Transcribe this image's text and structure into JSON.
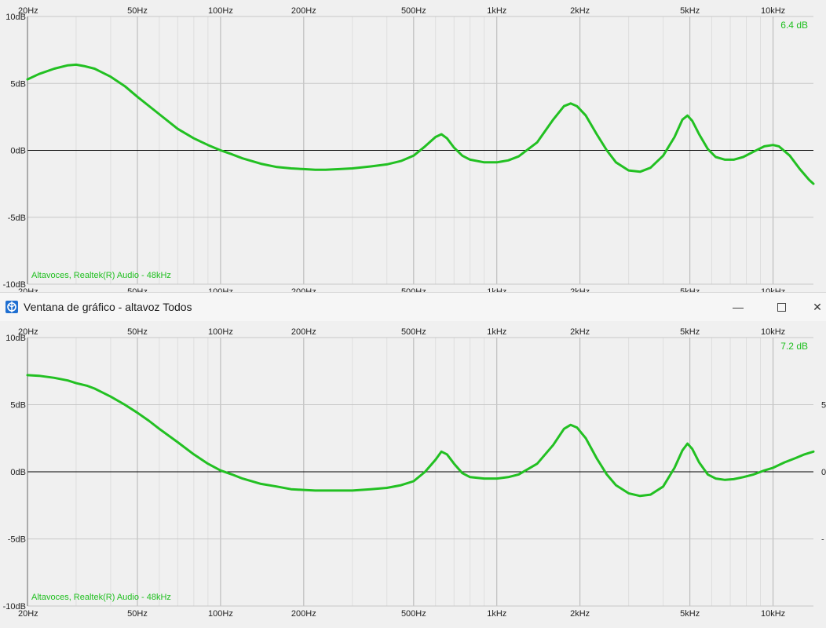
{
  "window": {
    "title": "Ventana de gráfico - altavoz Todos",
    "minimize_glyph": "—",
    "close_glyph": "✕"
  },
  "graphs": [
    {
      "peak_label": "6.4 dB",
      "device_label": "Altavoces, Realtek(R) Audio - 48kHz",
      "curve": [
        [
          20,
          5.3
        ],
        [
          22,
          5.7
        ],
        [
          25,
          6.1
        ],
        [
          28,
          6.35
        ],
        [
          30,
          6.4
        ],
        [
          32,
          6.3
        ],
        [
          35,
          6.1
        ],
        [
          40,
          5.5
        ],
        [
          45,
          4.8
        ],
        [
          50,
          4.0
        ],
        [
          60,
          2.7
        ],
        [
          70,
          1.6
        ],
        [
          80,
          0.9
        ],
        [
          90,
          0.4
        ],
        [
          100,
          0.0
        ],
        [
          110,
          -0.3
        ],
        [
          120,
          -0.6
        ],
        [
          140,
          -1.0
        ],
        [
          160,
          -1.25
        ],
        [
          180,
          -1.35
        ],
        [
          200,
          -1.4
        ],
        [
          220,
          -1.45
        ],
        [
          240,
          -1.45
        ],
        [
          270,
          -1.4
        ],
        [
          300,
          -1.35
        ],
        [
          350,
          -1.2
        ],
        [
          400,
          -1.05
        ],
        [
          450,
          -0.8
        ],
        [
          500,
          -0.4
        ],
        [
          550,
          0.3
        ],
        [
          600,
          1.0
        ],
        [
          630,
          1.2
        ],
        [
          660,
          0.9
        ],
        [
          700,
          0.2
        ],
        [
          750,
          -0.4
        ],
        [
          800,
          -0.7
        ],
        [
          900,
          -0.9
        ],
        [
          1000,
          -0.9
        ],
        [
          1100,
          -0.75
        ],
        [
          1200,
          -0.45
        ],
        [
          1400,
          0.6
        ],
        [
          1600,
          2.3
        ],
        [
          1750,
          3.3
        ],
        [
          1850,
          3.5
        ],
        [
          1950,
          3.3
        ],
        [
          2100,
          2.6
        ],
        [
          2300,
          1.2
        ],
        [
          2500,
          0.0
        ],
        [
          2700,
          -0.9
        ],
        [
          3000,
          -1.5
        ],
        [
          3300,
          -1.6
        ],
        [
          3600,
          -1.3
        ],
        [
          4000,
          -0.4
        ],
        [
          4400,
          1.0
        ],
        [
          4700,
          2.3
        ],
        [
          4900,
          2.6
        ],
        [
          5100,
          2.2
        ],
        [
          5400,
          1.2
        ],
        [
          5800,
          0.1
        ],
        [
          6200,
          -0.5
        ],
        [
          6700,
          -0.7
        ],
        [
          7200,
          -0.7
        ],
        [
          7800,
          -0.5
        ],
        [
          8500,
          -0.1
        ],
        [
          9300,
          0.3
        ],
        [
          10000,
          0.4
        ],
        [
          10500,
          0.3
        ],
        [
          11500,
          -0.4
        ],
        [
          12500,
          -1.4
        ],
        [
          13500,
          -2.2
        ],
        [
          14000,
          -2.5
        ]
      ]
    },
    {
      "peak_label": "7.2 dB",
      "device_label": "Altavoces, Realtek(R) Audio - 48kHz",
      "curve": [
        [
          20,
          7.2
        ],
        [
          22,
          7.15
        ],
        [
          25,
          7.0
        ],
        [
          28,
          6.8
        ],
        [
          30,
          6.6
        ],
        [
          33,
          6.4
        ],
        [
          35,
          6.2
        ],
        [
          40,
          5.6
        ],
        [
          45,
          5.0
        ],
        [
          50,
          4.4
        ],
        [
          55,
          3.8
        ],
        [
          60,
          3.2
        ],
        [
          70,
          2.2
        ],
        [
          80,
          1.3
        ],
        [
          90,
          0.6
        ],
        [
          100,
          0.1
        ],
        [
          110,
          -0.2
        ],
        [
          120,
          -0.5
        ],
        [
          140,
          -0.9
        ],
        [
          160,
          -1.1
        ],
        [
          180,
          -1.3
        ],
        [
          200,
          -1.35
        ],
        [
          220,
          -1.4
        ],
        [
          250,
          -1.4
        ],
        [
          300,
          -1.4
        ],
        [
          350,
          -1.3
        ],
        [
          400,
          -1.2
        ],
        [
          450,
          -1.0
        ],
        [
          500,
          -0.7
        ],
        [
          550,
          0.0
        ],
        [
          600,
          0.9
        ],
        [
          630,
          1.5
        ],
        [
          660,
          1.3
        ],
        [
          700,
          0.6
        ],
        [
          750,
          -0.1
        ],
        [
          800,
          -0.4
        ],
        [
          900,
          -0.5
        ],
        [
          1000,
          -0.5
        ],
        [
          1100,
          -0.4
        ],
        [
          1200,
          -0.2
        ],
        [
          1400,
          0.6
        ],
        [
          1600,
          2.0
        ],
        [
          1750,
          3.2
        ],
        [
          1850,
          3.5
        ],
        [
          1950,
          3.3
        ],
        [
          2100,
          2.5
        ],
        [
          2300,
          1.0
        ],
        [
          2500,
          -0.2
        ],
        [
          2700,
          -1.0
        ],
        [
          3000,
          -1.6
        ],
        [
          3300,
          -1.8
        ],
        [
          3600,
          -1.7
        ],
        [
          4000,
          -1.1
        ],
        [
          4400,
          0.3
        ],
        [
          4700,
          1.6
        ],
        [
          4900,
          2.1
        ],
        [
          5100,
          1.7
        ],
        [
          5400,
          0.7
        ],
        [
          5800,
          -0.2
        ],
        [
          6200,
          -0.5
        ],
        [
          6700,
          -0.6
        ],
        [
          7200,
          -0.55
        ],
        [
          7800,
          -0.4
        ],
        [
          8500,
          -0.2
        ],
        [
          9300,
          0.1
        ],
        [
          10000,
          0.3
        ],
        [
          11000,
          0.7
        ],
        [
          12000,
          1.0
        ],
        [
          13000,
          1.3
        ],
        [
          14000,
          1.5
        ]
      ]
    }
  ],
  "axes": {
    "x_tick_labels": [
      "20Hz",
      "50Hz",
      "100Hz",
      "200Hz",
      "500Hz",
      "1kHz",
      "2kHz",
      "5kHz",
      "10kHz"
    ],
    "x_tick_values": [
      20,
      50,
      100,
      200,
      500,
      1000,
      2000,
      5000,
      10000
    ],
    "x_minor_values": [
      30,
      40,
      60,
      70,
      80,
      90,
      300,
      400,
      600,
      700,
      800,
      900,
      3000,
      4000,
      6000,
      7000,
      8000,
      9000
    ],
    "x_range": [
      20,
      14000
    ],
    "y_tick_labels": [
      "10dB",
      "5dB",
      "0dB",
      "-5dB",
      "-10dB"
    ],
    "y_tick_values": [
      10,
      5,
      0,
      -5,
      -10
    ],
    "y_range": [
      -10,
      10
    ],
    "right_tick_labels": [
      "5",
      "0",
      "-"
    ],
    "right_tick_values": [
      5,
      0,
      -5
    ]
  },
  "colors": {
    "curve": "#22c022",
    "grid": "#c8c8c8",
    "zero_line": "#000000",
    "background": "#f0f0f0"
  },
  "icons": {
    "app": "speaker-app-icon"
  }
}
